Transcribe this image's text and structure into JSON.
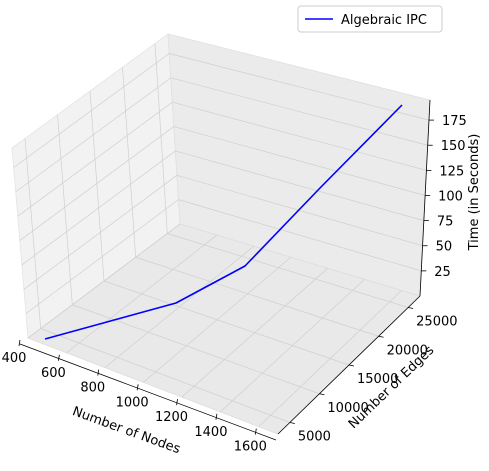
{
  "chart_data": {
    "type": "line3d",
    "legend": {
      "label": "Algebraic IPC",
      "color": "#0000ff",
      "placement": "top-right"
    },
    "series": [
      {
        "name": "Algebraic IPC",
        "color": "#0000ff",
        "points": [
          {
            "nodes": 500,
            "edges": 5000,
            "time": 5
          },
          {
            "nodes": 1000,
            "edges": 10000,
            "time": 14
          },
          {
            "nodes": 1200,
            "edges": 15000,
            "time": 30
          },
          {
            "nodes": 1300,
            "edges": 20000,
            "time": 100
          },
          {
            "nodes": 1350,
            "edges": 25000,
            "time": 188
          }
        ]
      }
    ],
    "axes": {
      "x": {
        "label": "Number of Nodes",
        "ticks": [
          400,
          600,
          800,
          1000,
          1200,
          1400,
          1600
        ]
      },
      "y": {
        "label": "Number of Edges",
        "ticks": [
          5000,
          10000,
          15000,
          20000,
          25000
        ]
      },
      "z": {
        "label": "Time (in Seconds)",
        "ticks": [
          25,
          50,
          75,
          100,
          125,
          150,
          175
        ]
      }
    },
    "grid": true
  }
}
